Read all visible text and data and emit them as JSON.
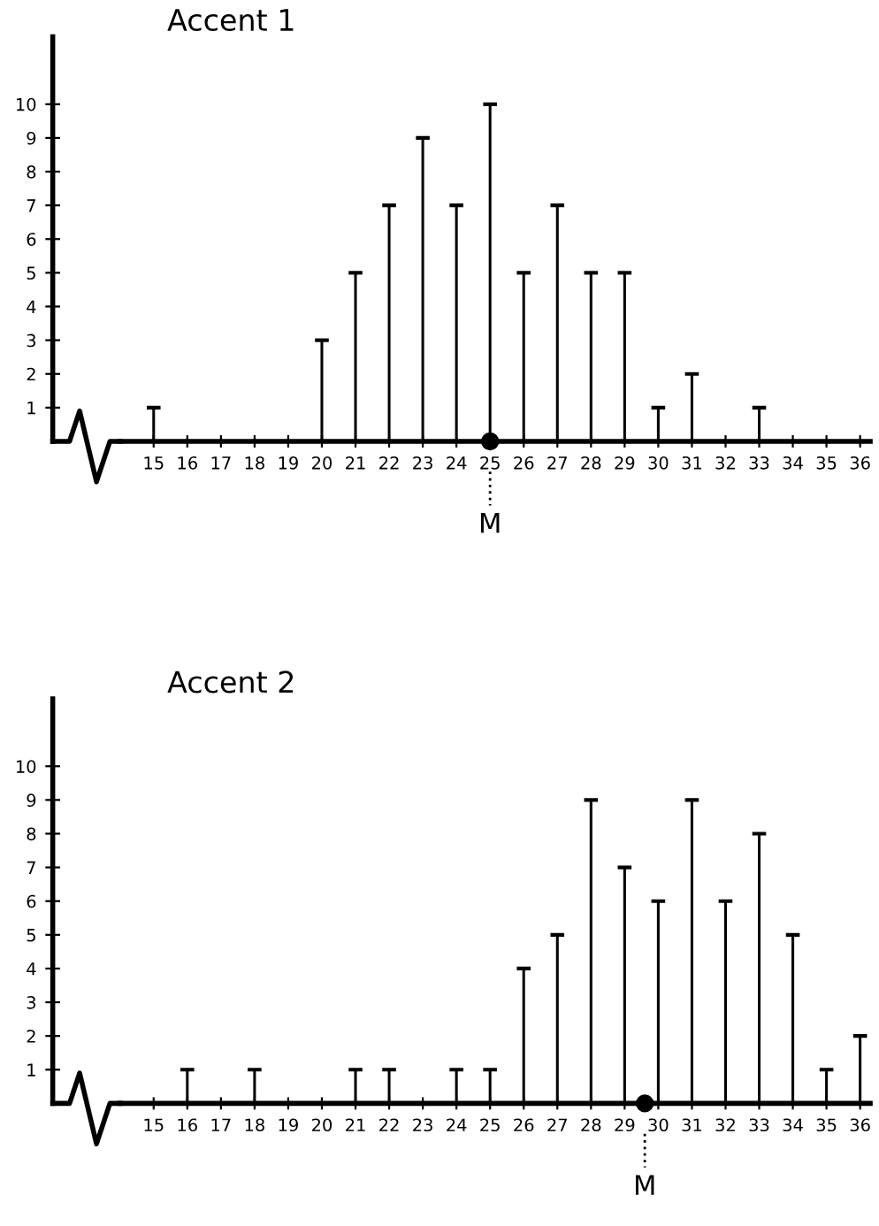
{
  "chart_data": [
    {
      "type": "bar",
      "title": "Accent 1",
      "series": [
        {
          "x": [
            15,
            20,
            21,
            22,
            23,
            24,
            25,
            26,
            27,
            28,
            29,
            30,
            31,
            33
          ],
          "values": [
            1,
            3,
            5,
            7,
            9,
            7,
            10,
            5,
            7,
            5,
            5,
            1,
            2,
            1
          ],
          "color": "#000000"
        },
        {
          "type": "scatter",
          "x": [
            25
          ],
          "values": [
            0
          ],
          "color": "#000000",
          "marker": "circle"
        }
      ],
      "xlim": [
        12,
        36.3
      ],
      "xticks": [
        15,
        16,
        17,
        18,
        19,
        20,
        21,
        22,
        23,
        24,
        25,
        26,
        27,
        28,
        29,
        30,
        31,
        32,
        33,
        34,
        35,
        36
      ],
      "ylim": [
        0,
        12
      ],
      "yticks": [
        1,
        2,
        3,
        4,
        5,
        6,
        7,
        8,
        9,
        10
      ],
      "ref_lines": [
        {
          "axis": "x",
          "value": 25,
          "label": "M",
          "line_style": "dotted"
        }
      ],
      "grid": false,
      "legend": false
    },
    {
      "type": "bar",
      "title": "Accent 2",
      "series": [
        {
          "x": [
            16,
            18,
            21,
            22,
            24,
            25,
            26,
            27,
            28,
            29,
            30,
            31,
            32,
            33,
            34,
            35,
            36
          ],
          "values": [
            1,
            1,
            1,
            1,
            1,
            1,
            4,
            5,
            9,
            7,
            6,
            9,
            6,
            8,
            5,
            1,
            2
          ],
          "color": "#000000"
        },
        {
          "type": "scatter",
          "x": [
            29.6
          ],
          "values": [
            0
          ],
          "color": "#000000",
          "marker": "circle"
        }
      ],
      "xlim": [
        12,
        36.3
      ],
      "xticks": [
        15,
        16,
        17,
        18,
        19,
        20,
        21,
        22,
        23,
        24,
        25,
        26,
        27,
        28,
        29,
        30,
        31,
        32,
        33,
        34,
        35,
        36
      ],
      "ylim": [
        0,
        12
      ],
      "yticks": [
        1,
        2,
        3,
        4,
        5,
        6,
        7,
        8,
        9,
        10
      ],
      "ref_lines": [
        {
          "axis": "x",
          "value": 29.6,
          "label": "M",
          "line_style": "dotted"
        }
      ],
      "grid": false,
      "legend": false
    }
  ]
}
